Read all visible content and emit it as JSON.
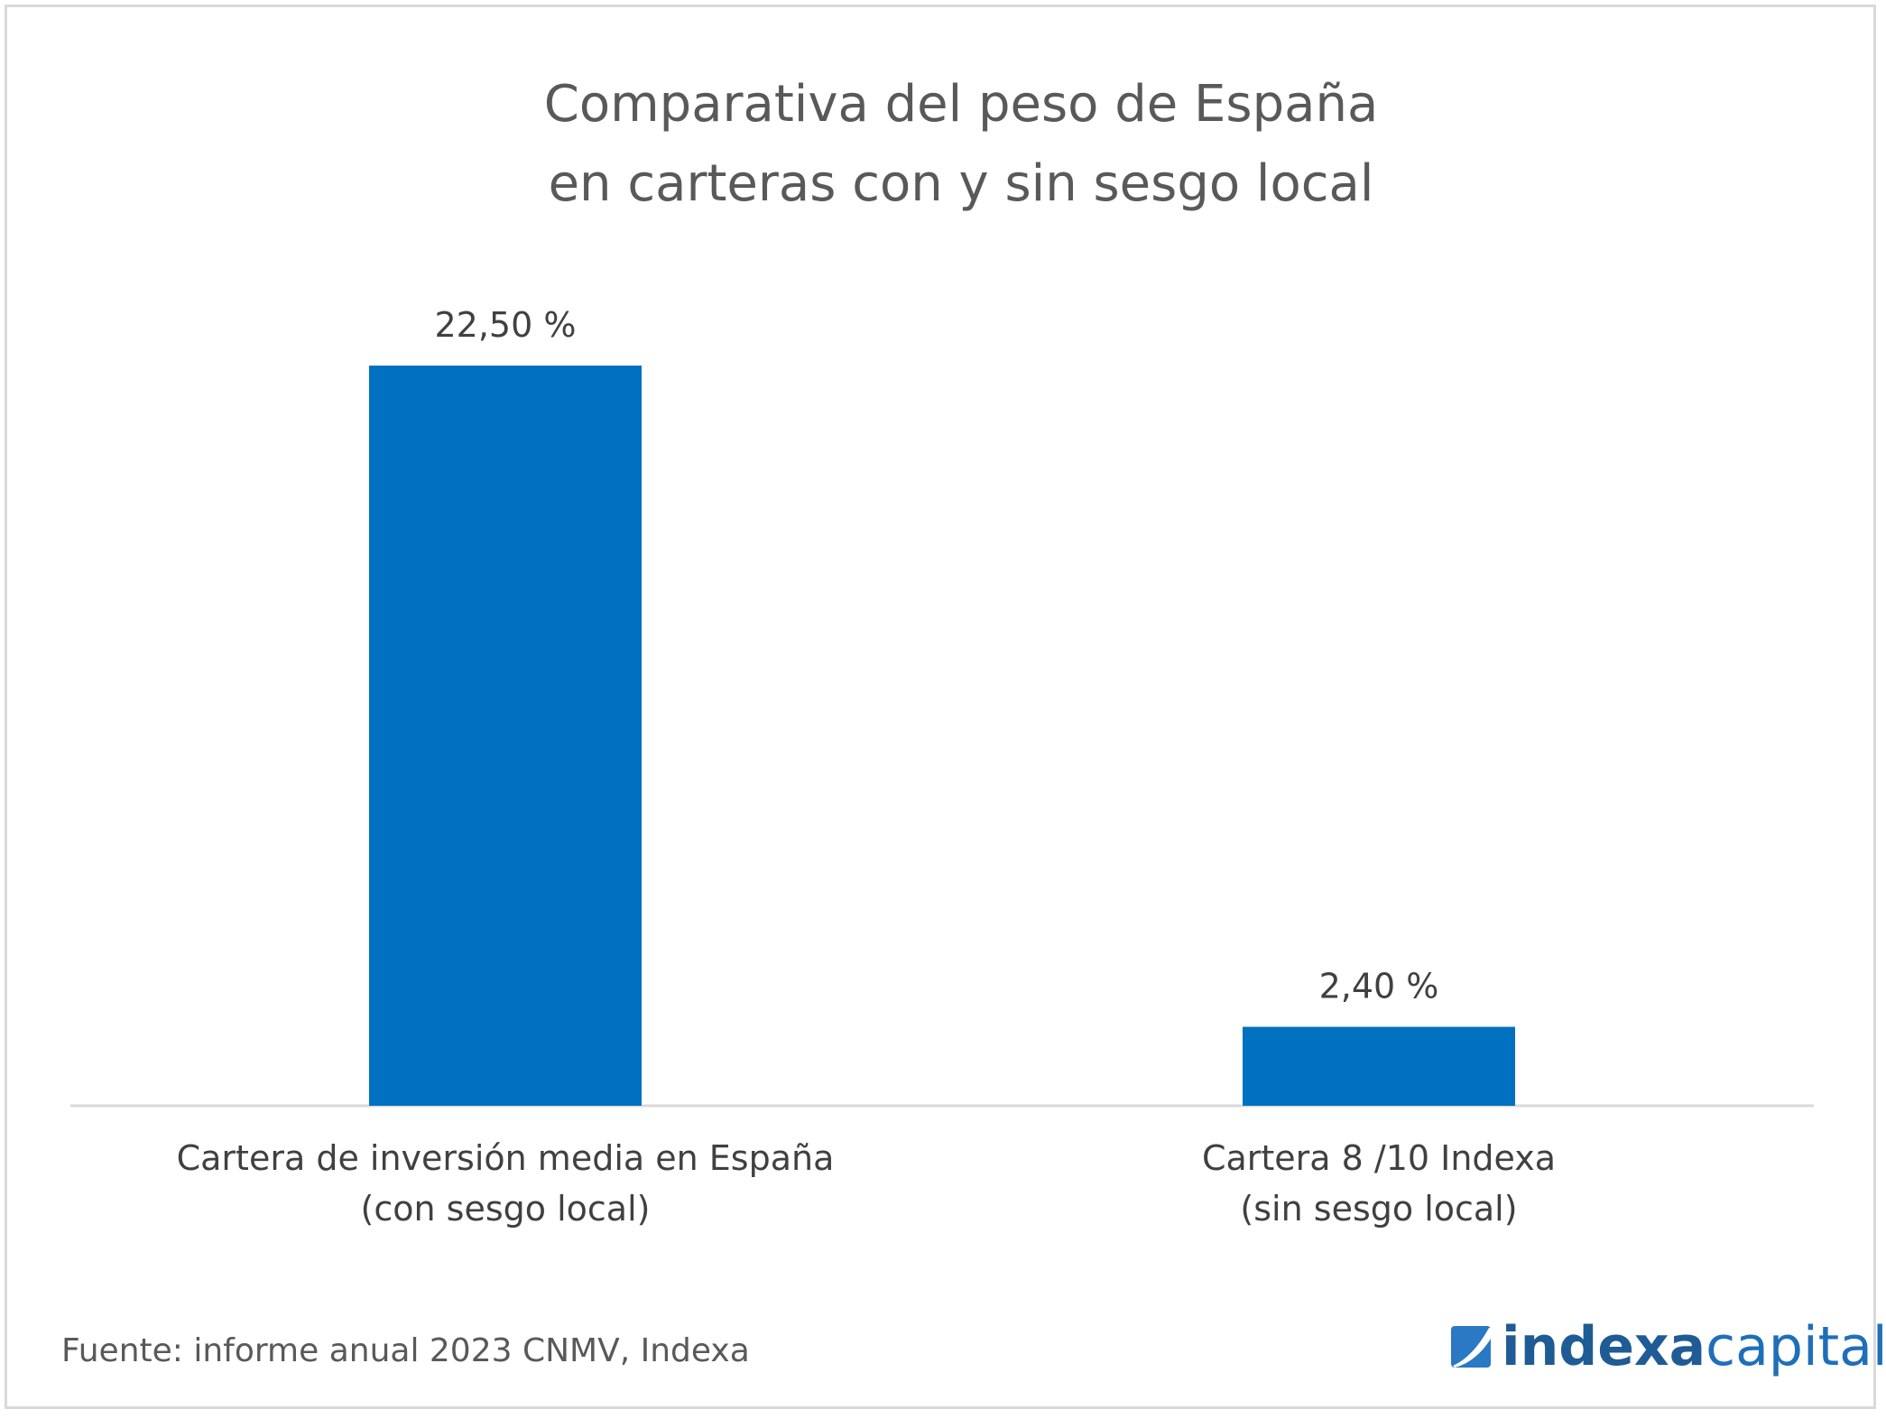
{
  "chart_data": {
    "type": "bar",
    "title": [
      "Comparativa del peso de España",
      "en carteras con y sin sesgo local"
    ],
    "categories": [
      [
        "Cartera de inversión media en España",
        "(con sesgo local)"
      ],
      [
        "Cartera 8 /10 Indexa",
        "(sin sesgo local)"
      ]
    ],
    "values": [
      22.5,
      2.4
    ],
    "data_labels": [
      "22,50 %",
      "2,40 %"
    ],
    "xlabel": "",
    "ylabel": "",
    "ylim": [
      0,
      22.5
    ],
    "grid": false,
    "legend": "none"
  },
  "colors": {
    "bar": "#0070c0",
    "axis": "#d9d9d9",
    "text": "#404040"
  },
  "footer": {
    "source": "Fuente: informe anual 2023 CNMV, Indexa"
  },
  "brand": {
    "name_part1": "indexa",
    "name_part2": "capital",
    "icon": "indexa-logo-icon"
  }
}
